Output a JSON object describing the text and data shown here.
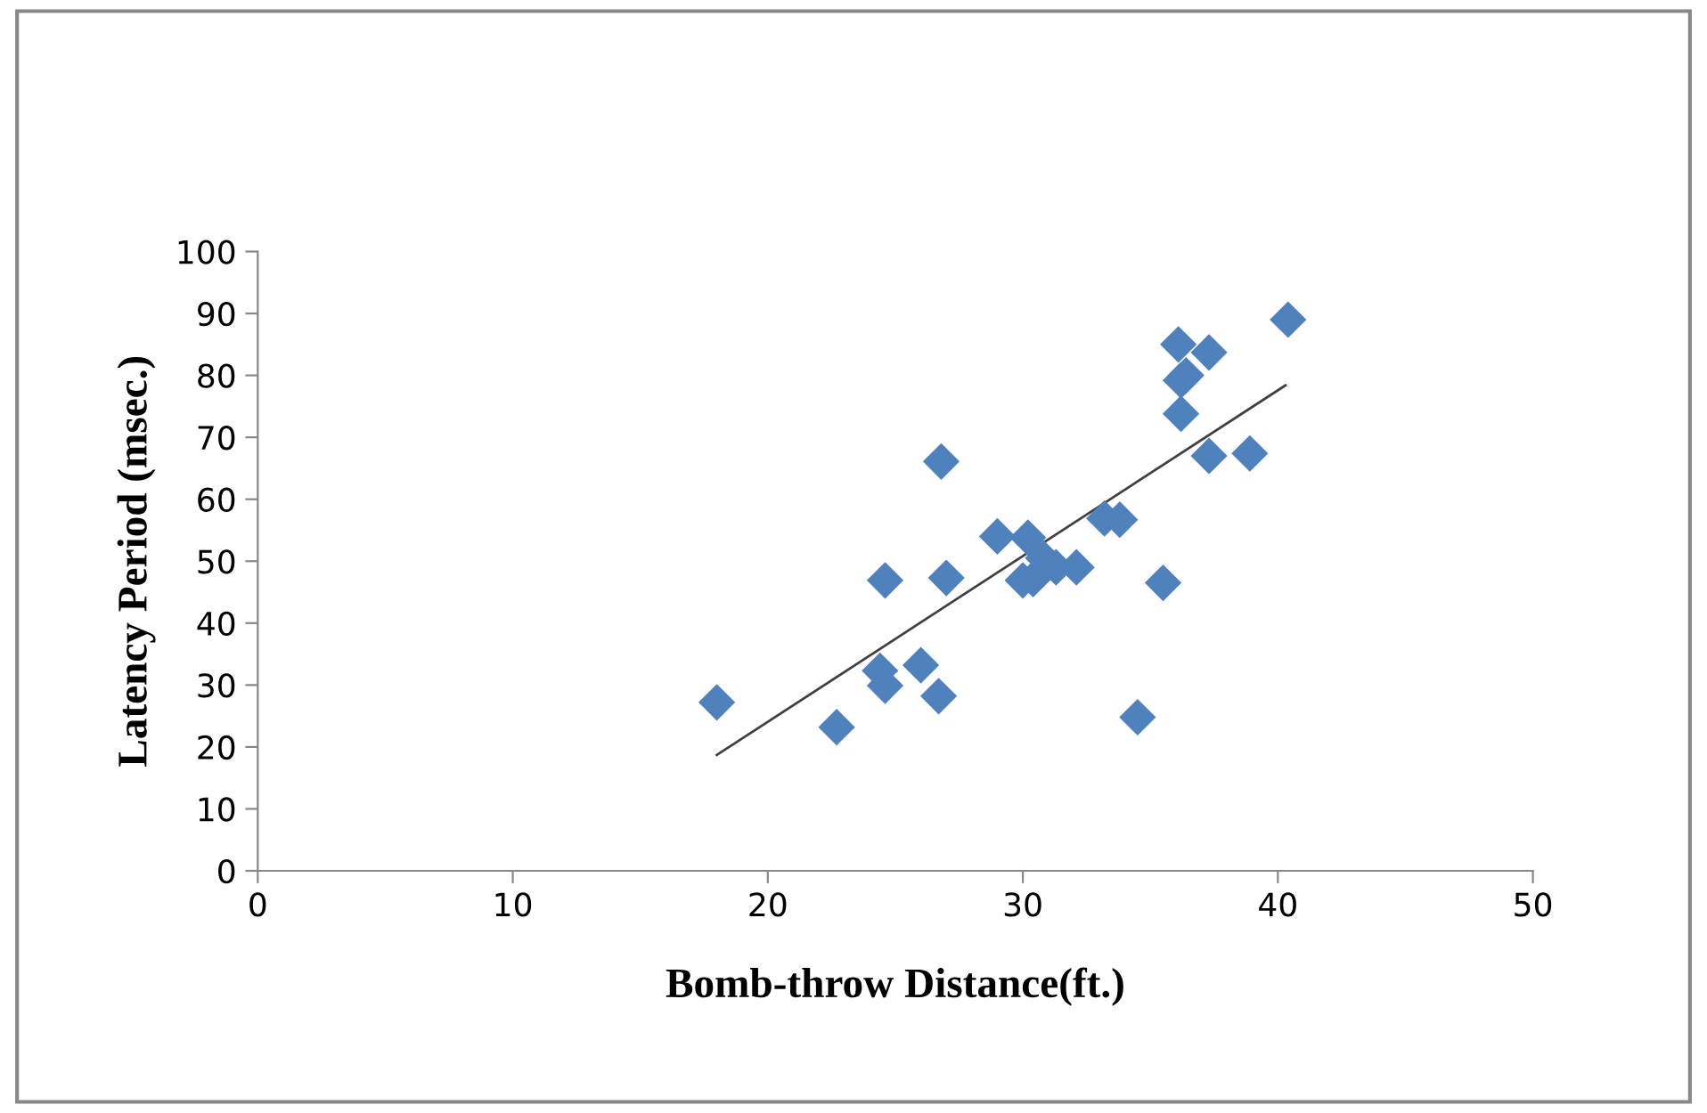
{
  "chart_data": {
    "type": "scatter",
    "xlabel": "Bomb-throw Distance(ft.)",
    "ylabel": "Latency Period (msec.)",
    "xlim": [
      0,
      50
    ],
    "ylim": [
      0,
      100
    ],
    "xticks": [
      0,
      10,
      20,
      30,
      40,
      50
    ],
    "yticks": [
      0,
      10,
      20,
      30,
      40,
      50,
      60,
      70,
      80,
      90,
      100
    ],
    "grid": false,
    "legend": false,
    "series": [
      {
        "marker": "diamond",
        "color": "#4f81bd",
        "x": [
          18.0,
          22.7,
          24.4,
          24.6,
          24.6,
          26.0,
          26.7,
          26.8,
          27.0,
          29.0,
          30.2,
          30.0,
          30.4,
          30.8,
          31.3,
          32.1,
          33.2,
          33.8,
          34.5,
          35.5,
          36.2,
          36.2,
          36.4,
          36.1,
          37.3,
          37.3,
          38.9,
          40.4
        ],
        "values": [
          27.2,
          23.2,
          32.3,
          29.9,
          46.9,
          33.2,
          28.2,
          66.1,
          47.3,
          54.0,
          53.8,
          46.9,
          47.1,
          50.5,
          49.0,
          49.0,
          56.9,
          56.7,
          24.8,
          46.5,
          73.8,
          79.2,
          80.0,
          85.0,
          83.7,
          67.0,
          67.4,
          89.0
        ]
      },
      {
        "type": "line",
        "color": "#404040",
        "x": [
          18.0,
          40.3
        ],
        "values": [
          18.7,
          78.4
        ]
      }
    ]
  }
}
